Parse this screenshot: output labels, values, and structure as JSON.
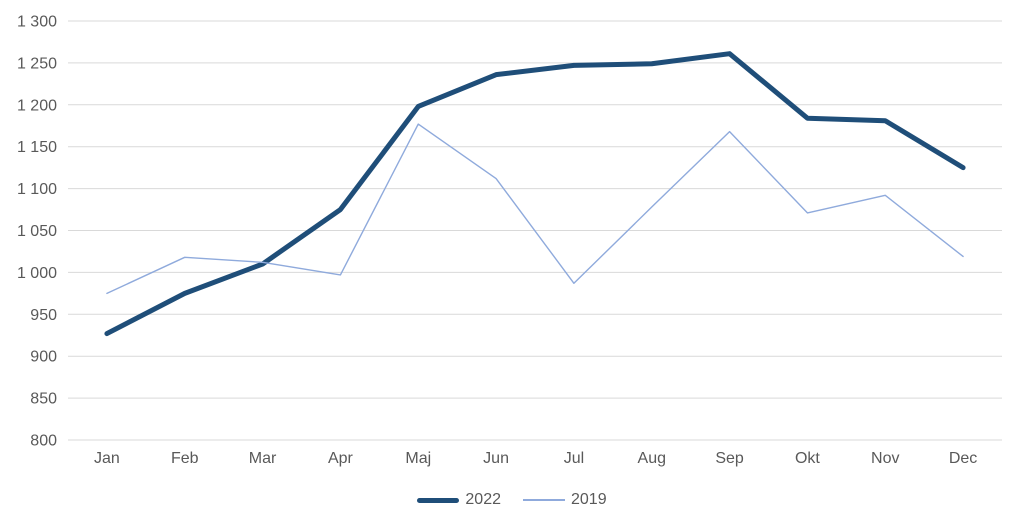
{
  "chart_data": {
    "type": "line",
    "title": "",
    "xlabel": "",
    "ylabel": "",
    "categories": [
      "Jan",
      "Feb",
      "Mar",
      "Apr",
      "Maj",
      "Jun",
      "Jul",
      "Aug",
      "Sep",
      "Okt",
      "Nov",
      "Dec"
    ],
    "series": [
      {
        "name": "2022",
        "color": "#1F4E79",
        "style": "thick",
        "values": [
          927,
          975,
          1010,
          1075,
          1198,
          1236,
          1247,
          1249,
          1261,
          1184,
          1181,
          1125
        ]
      },
      {
        "name": "2019",
        "color": "#8FAADC",
        "style": "thin",
        "values": [
          975,
          1018,
          1012,
          997,
          1177,
          1112,
          987,
          1078,
          1168,
          1071,
          1092,
          1019
        ]
      }
    ],
    "ylim": [
      800,
      1300
    ],
    "yticks": [
      800,
      850,
      900,
      950,
      1000,
      1050,
      1100,
      1150,
      1200,
      1250,
      1300
    ],
    "ytick_labels": [
      "800",
      "850",
      "900",
      "950",
      "1 000",
      "1 050",
      "1 100",
      "1 150",
      "1 200",
      "1 250",
      "1 300"
    ],
    "grid": "horizontal",
    "gridline_color": "#D9D9D9",
    "axis_label_color": "#595959",
    "legend_position": "bottom-center"
  }
}
